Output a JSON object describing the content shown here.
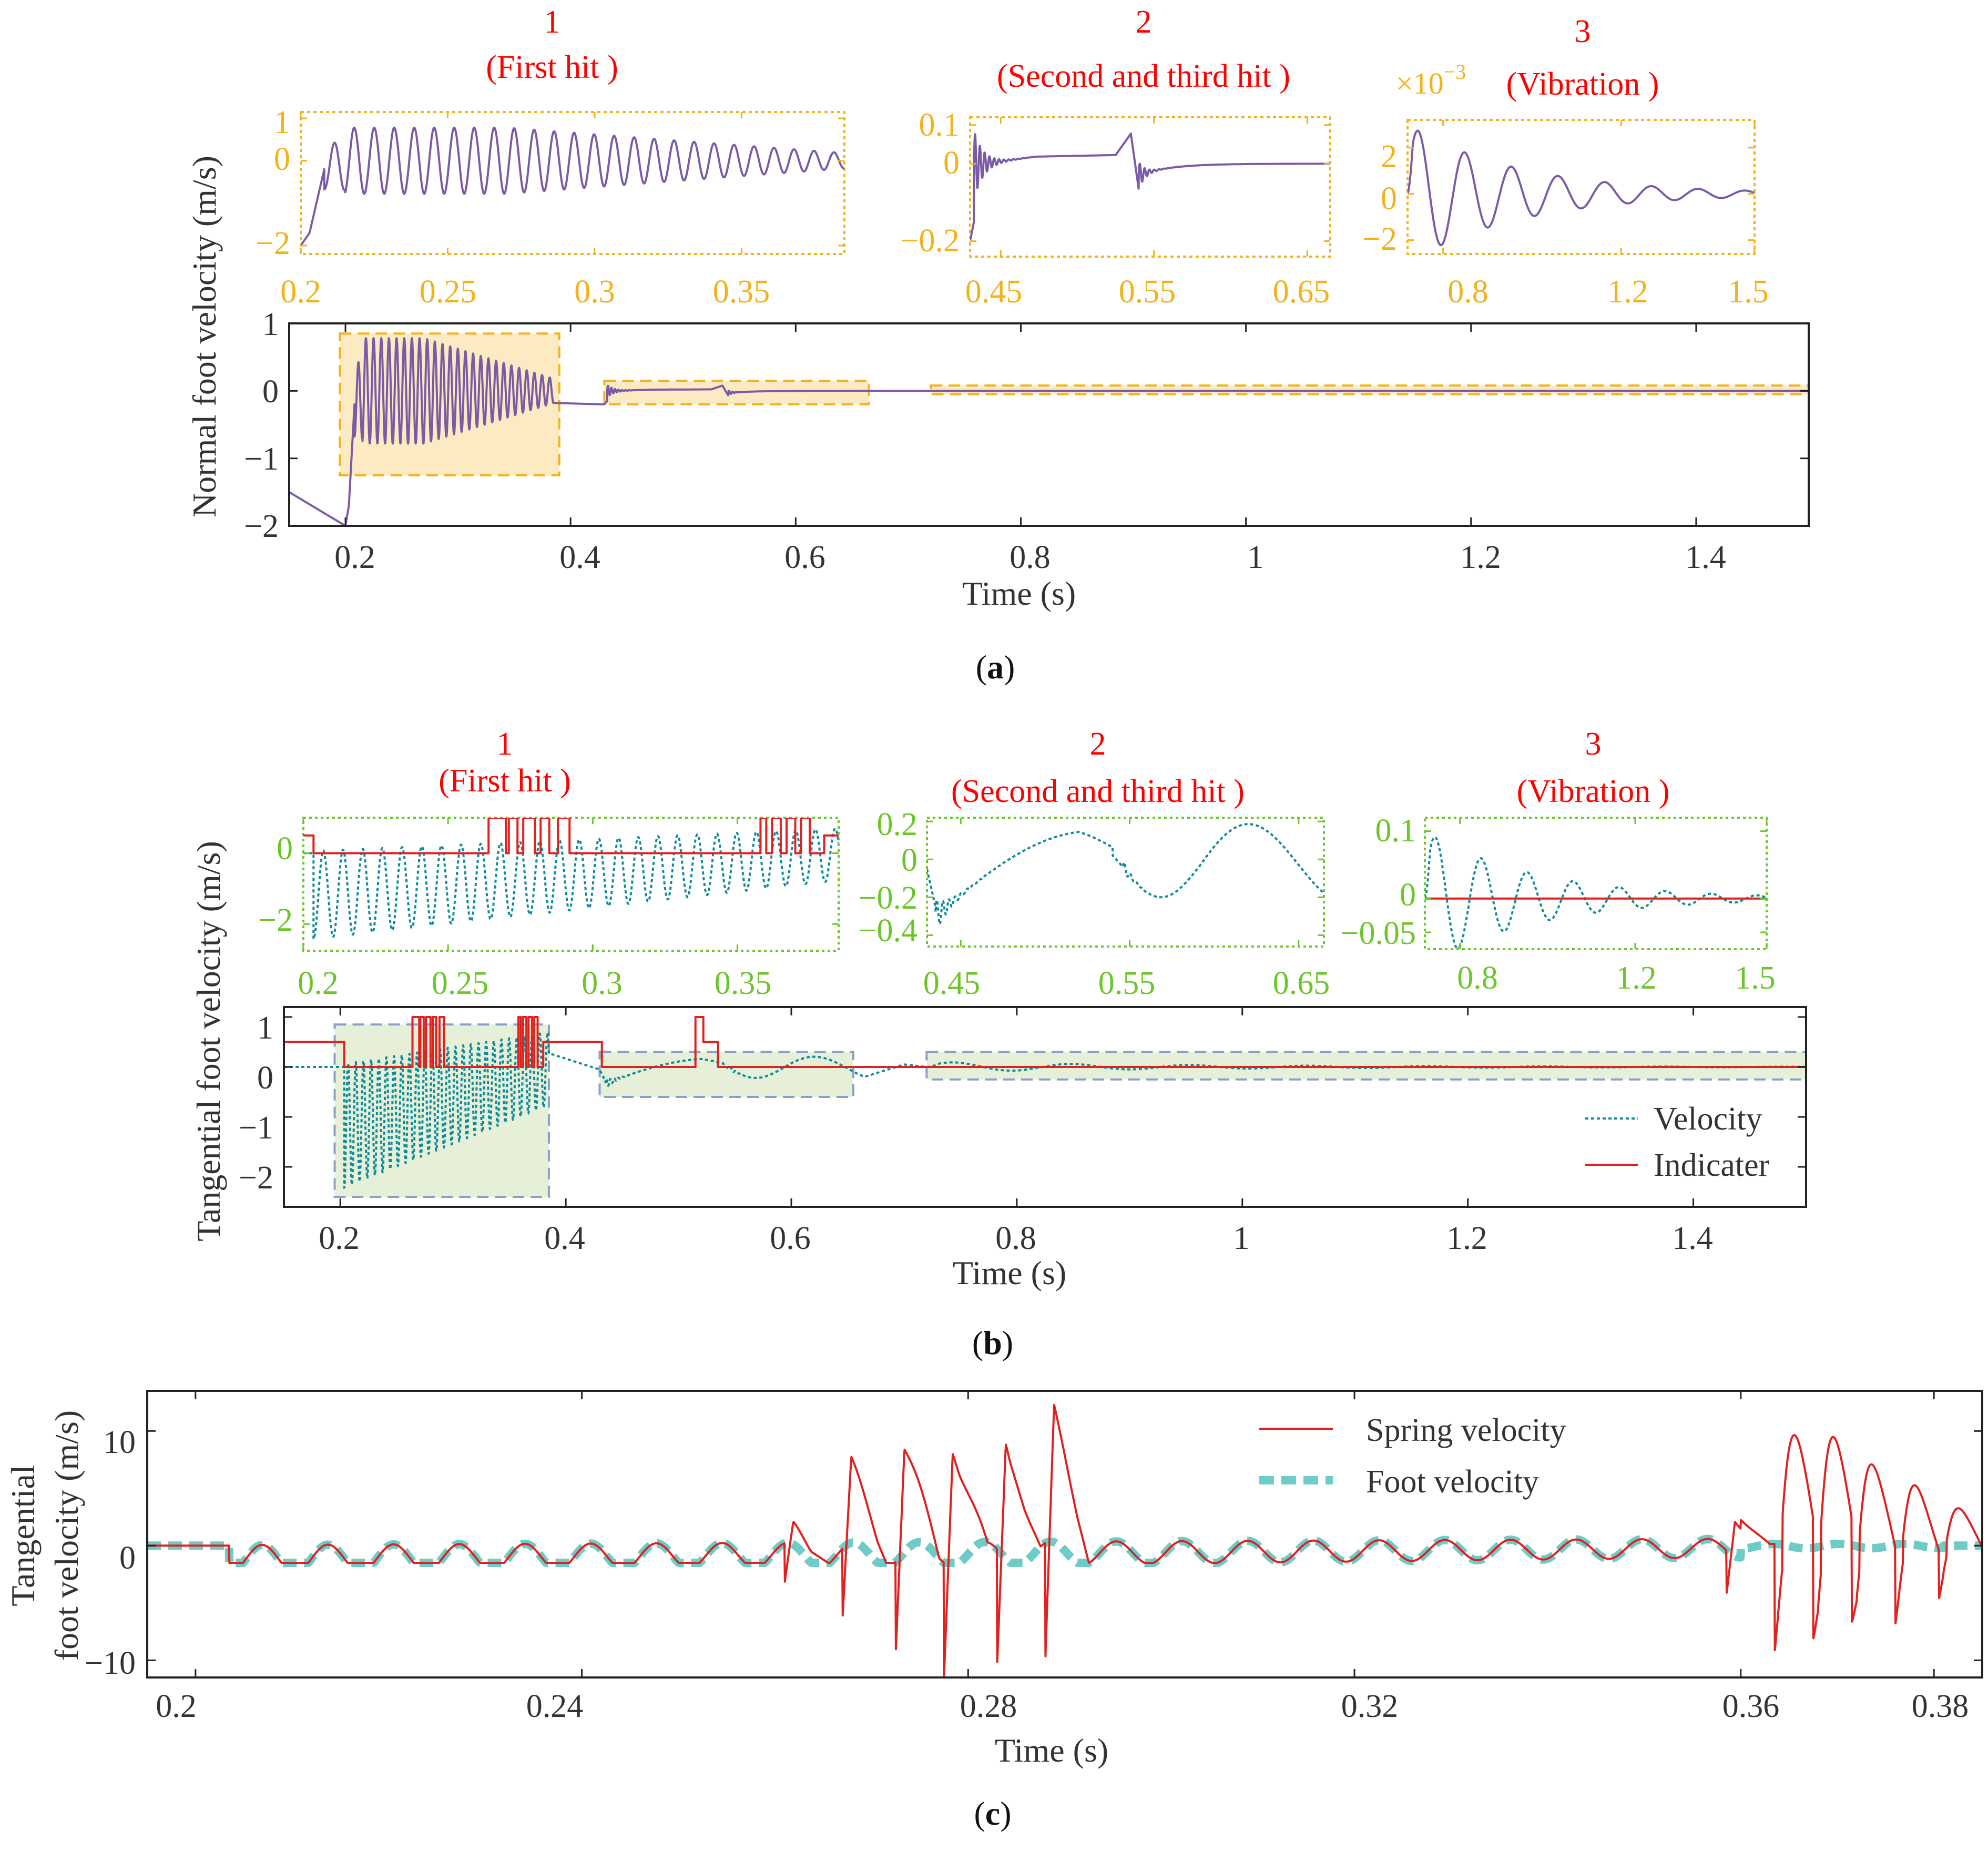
{
  "colors": {
    "purple": "#7B5BA6",
    "teal": "#0F8B9A",
    "red": "#E0211F",
    "red_title": "#FF0000",
    "gold": "#F2B21A",
    "gold_fill": "#FCEBC2",
    "green": "#6CC62A",
    "green_fill": "#E6F0D9",
    "blue_box": "#8AA0C8",
    "aqua": "#6DCBC8",
    "black": "#222222"
  },
  "panel_labels": {
    "a": "a",
    "b": "b",
    "c": "c"
  },
  "chart_data": [
    {
      "id": "a-inset-1",
      "type": "line",
      "number": "1",
      "title": "(First hit )",
      "xlim": [
        0.2,
        0.385
      ],
      "ylim": [
        -2.2,
        1.15
      ],
      "xticks": [
        "0.2",
        "0.25",
        "0.3",
        "0.35"
      ],
      "xtick_values": [
        0.2,
        0.25,
        0.3,
        0.35
      ],
      "yticks": [
        "−2",
        "0",
        "1"
      ],
      "ytick_values": [
        -2,
        0,
        1
      ],
      "series": [
        {
          "name": "Normal foot velocity",
          "color": "purple",
          "kind": "sine",
          "t0": 0.2,
          "t1": 0.385,
          "freq": 147,
          "start": -2.0,
          "amp_peak": 0.78,
          "amp_end": 0.18,
          "center": 0
        }
      ]
    },
    {
      "id": "a-inset-2",
      "type": "line",
      "number": "2",
      "title": "(Second and third hit )",
      "xlim": [
        0.43,
        0.665
      ],
      "ylim": [
        -0.24,
        0.12
      ],
      "xticks": [
        "0.45",
        "0.55",
        "0.65"
      ],
      "xtick_values": [
        0.45,
        0.55,
        0.65
      ],
      "yticks": [
        "−0.2",
        "0",
        "0.1"
      ],
      "ytick_values": [
        -0.2,
        0,
        0.1
      ],
      "series": [
        {
          "name": "Normal foot velocity",
          "color": "purple",
          "kind": "hits",
          "hits": [
            0.43,
            0.54
          ],
          "amps": [
            0.1,
            0.08
          ],
          "drift": 0.025
        }
      ]
    },
    {
      "id": "a-inset-3",
      "type": "line",
      "number": "3",
      "title": "(Vibration )",
      "multiplier": "×10",
      "exponent": "−3",
      "xlim": [
        0.72,
        1.5
      ],
      "ylim": [
        -2.6,
        3.2
      ],
      "xticks": [
        "0.8",
        "1.2",
        "1.5"
      ],
      "xtick_values": [
        0.8,
        1.2,
        1.5
      ],
      "yticks": [
        "−2",
        "0",
        "2"
      ],
      "ytick_values": [
        -2,
        0,
        2
      ],
      "series": [
        {
          "name": "Normal foot velocity",
          "color": "purple",
          "kind": "decay",
          "t0": 0.72,
          "amp": 3.0,
          "period": 0.105,
          "tau": 0.25
        }
      ]
    },
    {
      "id": "a-main",
      "type": "line",
      "ylabel": "Normal foot velocity (m/s)",
      "xlabel": "Time (s)",
      "xlim": [
        0.15,
        1.5
      ],
      "ylim": [
        -2,
        1
      ],
      "xticks": [
        "0.2",
        "0.4",
        "0.6",
        "0.8",
        "1",
        "1.2",
        "1.4"
      ],
      "xtick_values": [
        0.2,
        0.4,
        0.6,
        0.8,
        1.0,
        1.2,
        1.4
      ],
      "yticks": [
        "−2",
        "−1",
        "0",
        "1"
      ],
      "ytick_values": [
        -2,
        -1,
        0,
        1
      ],
      "zoom_boxes": [
        [
          0.195,
          0.39,
          -1.25,
          0.85
        ],
        [
          0.43,
          0.665,
          -0.2,
          0.15
        ],
        [
          0.72,
          1.5,
          -0.05,
          0.08
        ]
      ],
      "series": [
        {
          "name": "Normal foot velocity",
          "color": "purple",
          "kind": "normal_full"
        }
      ]
    },
    {
      "id": "b-inset-1",
      "type": "line",
      "number": "1",
      "title": "(First hit )",
      "xlim": [
        0.2,
        0.385
      ],
      "ylim": [
        -2.75,
        1.0
      ],
      "xticks": [
        "0.2",
        "0.25",
        "0.3",
        "0.35"
      ],
      "xtick_values": [
        0.2,
        0.25,
        0.3,
        0.35
      ],
      "yticks": [
        "−2",
        "0"
      ],
      "ytick_values": [
        -2,
        0
      ],
      "series": [
        {
          "name": "Velocity",
          "color": "teal",
          "kind": "tang_sine",
          "dashed": true
        },
        {
          "name": "Indicater",
          "color": "red",
          "kind": "indicator1"
        }
      ]
    },
    {
      "id": "b-inset-2",
      "type": "line",
      "number": "2",
      "title": "(Second and third hit )",
      "xlim": [
        0.43,
        0.665
      ],
      "ylim": [
        -0.46,
        0.22
      ],
      "xticks": [
        "0.45",
        "0.55",
        "0.65"
      ],
      "xtick_values": [
        0.45,
        0.55,
        0.65
      ],
      "yticks": [
        "−0.4",
        "−0.2",
        "0",
        "0.2"
      ],
      "ytick_values": [
        -0.4,
        -0.2,
        0,
        0.2
      ],
      "series": [
        {
          "name": "Velocity",
          "color": "teal",
          "kind": "tang_mid",
          "dashed": true
        }
      ]
    },
    {
      "id": "b-inset-3",
      "type": "line",
      "number": "3",
      "title": "(Vibration )",
      "xlim": [
        0.72,
        1.5
      ],
      "ylim": [
        -0.075,
        0.12
      ],
      "xticks": [
        "0.8",
        "1.2",
        "1.5"
      ],
      "xtick_values": [
        0.8,
        1.2,
        1.5
      ],
      "yticks": [
        "−0.05",
        "0",
        "0.1"
      ],
      "ytick_values": [
        -0.05,
        0,
        0.1
      ],
      "series": [
        {
          "name": "Velocity",
          "color": "teal",
          "kind": "decay",
          "t0": 0.72,
          "amp": 0.1,
          "period": 0.105,
          "tau": 0.25,
          "dashed": true
        },
        {
          "name": "Indicater",
          "color": "red",
          "kind": "flat"
        }
      ]
    },
    {
      "id": "b-main",
      "type": "line",
      "ylabel": "Tangential foot velocity (m/s)",
      "xlabel": "Time (s)",
      "xlim": [
        0.15,
        1.5
      ],
      "ylim": [
        -2.8,
        1.2
      ],
      "xticks": [
        "0.2",
        "0.4",
        "0.6",
        "0.8",
        "1",
        "1.2",
        "1.4"
      ],
      "xtick_values": [
        0.2,
        0.4,
        0.6,
        0.8,
        1.0,
        1.2,
        1.4
      ],
      "yticks": [
        "−2",
        "−1",
        "0",
        "1"
      ],
      "ytick_values": [
        -2,
        -1,
        0,
        1
      ],
      "zoom_boxes": [
        [
          0.195,
          0.385,
          -2.6,
          0.85
        ],
        [
          0.43,
          0.655,
          -0.6,
          0.3
        ],
        [
          0.72,
          1.5,
          -0.25,
          0.3
        ]
      ],
      "legend": [
        "Velocity",
        "Indicater"
      ],
      "legend_position": "bottom-right",
      "series": [
        {
          "name": "Velocity",
          "color": "teal",
          "kind": "tang_full",
          "dashed": true
        },
        {
          "name": "Indicater",
          "color": "red",
          "kind": "indicator_full"
        }
      ]
    },
    {
      "id": "c-main",
      "type": "line",
      "ylabel_lines": [
        "Tangential",
        "foot velocity (m/s)"
      ],
      "xlabel": "Time (s)",
      "xlim": [
        0.195,
        0.385
      ],
      "ylim": [
        -11.5,
        13.5
      ],
      "xticks": [
        "0.2",
        "0.24",
        "0.28",
        "0.32",
        "0.36",
        "0.38"
      ],
      "xtick_values": [
        0.2,
        0.24,
        0.28,
        0.32,
        0.36,
        0.38
      ],
      "yticks": [
        "−10",
        "0",
        "10"
      ],
      "ytick_values": [
        -10,
        0,
        10
      ],
      "legend": [
        "Spring velocity",
        "Foot velocity"
      ],
      "legend_position": "top-right",
      "series": [
        {
          "name": "Foot velocity",
          "color": "aqua",
          "kind": "c_foot",
          "dashed": true
        },
        {
          "name": "Spring velocity",
          "color": "red",
          "kind": "c_spring"
        }
      ]
    }
  ]
}
